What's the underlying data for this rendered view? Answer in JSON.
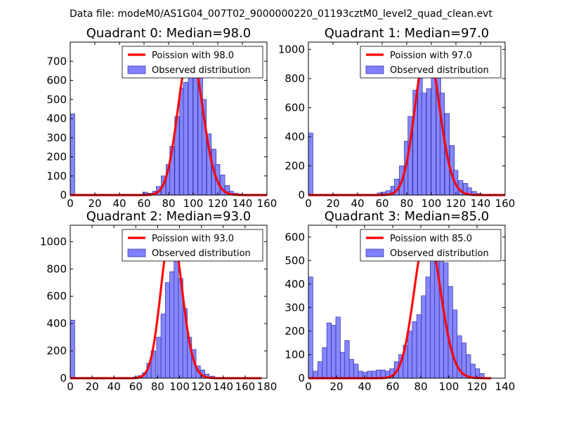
{
  "suptitle": "Data file: modeM0/AS1G04_007T02_9000000220_01193cztM0_level2_quad_clean.evt",
  "colors": {
    "bar_fill": "#8080ff",
    "bar_edge": "#2e2e9e",
    "model_line": "#ff0000"
  },
  "chart_data": [
    {
      "type": "bar",
      "title": "Quadrant 0: Median=98.0",
      "xlim": [
        0,
        160
      ],
      "ylim": [
        0,
        800
      ],
      "xticks": [
        0,
        20,
        40,
        60,
        80,
        100,
        120,
        140,
        160
      ],
      "yticks": [
        0,
        100,
        200,
        300,
        400,
        500,
        600,
        700
      ],
      "legend": [
        "Poission with 98.0",
        "Observed distribution"
      ],
      "legend_loc": "upper right",
      "bin_width": 3.7,
      "bins": [
        [
          0,
          425
        ],
        [
          59,
          15
        ],
        [
          63,
          10
        ],
        [
          67,
          20
        ],
        [
          70,
          45
        ],
        [
          74,
          100
        ],
        [
          78,
          160
        ],
        [
          81,
          255
        ],
        [
          85,
          410
        ],
        [
          89,
          560
        ],
        [
          92,
          590
        ],
        [
          96,
          670
        ],
        [
          100,
          700
        ],
        [
          104,
          620
        ],
        [
          107,
          500
        ],
        [
          111,
          320
        ],
        [
          115,
          240
        ],
        [
          118,
          160
        ],
        [
          122,
          105
        ],
        [
          126,
          50
        ],
        [
          129,
          20
        ],
        [
          133,
          10
        ],
        [
          137,
          5
        ]
      ],
      "model_mean": 98.0,
      "model_peak": 760,
      "model_x": [
        0,
        160
      ]
    },
    {
      "type": "bar",
      "title": "Quadrant 1: Median=97.0",
      "xlim": [
        0,
        160
      ],
      "ylim": [
        0,
        1050
      ],
      "xticks": [
        0,
        20,
        40,
        60,
        80,
        100,
        120,
        140,
        160
      ],
      "yticks": [
        0,
        200,
        400,
        600,
        800,
        1000
      ],
      "legend": [
        "Poission with 97.0",
        "Observed distribution"
      ],
      "legend_loc": "upper right",
      "bin_width": 3.7,
      "bins": [
        [
          0,
          425
        ],
        [
          56,
          15
        ],
        [
          59,
          20
        ],
        [
          63,
          30
        ],
        [
          67,
          60
        ],
        [
          70,
          110
        ],
        [
          74,
          200
        ],
        [
          78,
          370
        ],
        [
          81,
          540
        ],
        [
          85,
          720
        ],
        [
          89,
          900
        ],
        [
          92,
          700
        ],
        [
          96,
          730
        ],
        [
          100,
          870
        ],
        [
          104,
          1000
        ],
        [
          107,
          700
        ],
        [
          111,
          560
        ],
        [
          115,
          340
        ],
        [
          118,
          170
        ],
        [
          122,
          100
        ],
        [
          126,
          80
        ],
        [
          129,
          50
        ],
        [
          133,
          25
        ],
        [
          137,
          10
        ]
      ],
      "model_mean": 97.0,
      "model_peak": 1010,
      "model_x": [
        0,
        160
      ]
    },
    {
      "type": "bar",
      "title": "Quadrant 2: Median=93.0",
      "xlim": [
        0,
        180
      ],
      "ylim": [
        0,
        1120
      ],
      "xticks": [
        0,
        20,
        40,
        60,
        80,
        100,
        120,
        140,
        160,
        180
      ],
      "yticks": [
        0,
        200,
        400,
        600,
        800,
        1000
      ],
      "legend": [
        "Poission with 93.0",
        "Observed distribution"
      ],
      "legend_loc": "upper right",
      "bin_width": 4.1,
      "bins": [
        [
          0,
          425
        ],
        [
          58,
          10
        ],
        [
          62,
          20
        ],
        [
          66,
          40
        ],
        [
          70,
          110
        ],
        [
          74,
          200
        ],
        [
          79,
          300
        ],
        [
          83,
          470
        ],
        [
          87,
          700
        ],
        [
          91,
          780
        ],
        [
          95,
          1000
        ],
        [
          99,
          730
        ],
        [
          103,
          510
        ],
        [
          107,
          300
        ],
        [
          111,
          210
        ],
        [
          115,
          90
        ],
        [
          119,
          60
        ],
        [
          123,
          30
        ],
        [
          128,
          15
        ],
        [
          132,
          5
        ]
      ],
      "model_mean": 93.0,
      "model_peak": 1080,
      "model_x": [
        0,
        175
      ]
    },
    {
      "type": "bar",
      "title": "Quadrant 3: Median=85.0",
      "xlim": [
        0,
        140
      ],
      "ylim": [
        0,
        650
      ],
      "xticks": [
        0,
        20,
        40,
        60,
        80,
        100,
        120,
        140
      ],
      "yticks": [
        0,
        100,
        200,
        300,
        400,
        500,
        600
      ],
      "legend": [
        "Poission with 85.0",
        "Observed distribution"
      ],
      "legend_loc": "upper right",
      "bin_width": 3.2,
      "bins": [
        [
          0,
          430
        ],
        [
          3.5,
          30
        ],
        [
          6.7,
          70
        ],
        [
          9.9,
          130
        ],
        [
          13.1,
          235
        ],
        [
          16.3,
          225
        ],
        [
          19.5,
          260
        ],
        [
          22.7,
          110
        ],
        [
          25.9,
          160
        ],
        [
          29.1,
          80
        ],
        [
          32.3,
          60
        ],
        [
          35.5,
          30
        ],
        [
          38.7,
          25
        ],
        [
          41.9,
          30
        ],
        [
          45.1,
          30
        ],
        [
          48.3,
          35
        ],
        [
          51.5,
          35
        ],
        [
          54.7,
          30
        ],
        [
          57.9,
          40
        ],
        [
          61.1,
          70
        ],
        [
          64.3,
          100
        ],
        [
          67.5,
          140
        ],
        [
          70.7,
          200
        ],
        [
          73.9,
          240
        ],
        [
          77.1,
          270
        ],
        [
          80.3,
          350
        ],
        [
          83.5,
          430
        ],
        [
          86.7,
          530
        ],
        [
          89.9,
          600
        ],
        [
          93.1,
          620
        ],
        [
          96.3,
          490
        ],
        [
          99.5,
          390
        ],
        [
          102.7,
          290
        ],
        [
          105.9,
          180
        ],
        [
          109.1,
          150
        ],
        [
          112.3,
          100
        ],
        [
          115.5,
          60
        ],
        [
          118.7,
          40
        ],
        [
          121.9,
          20
        ]
      ],
      "model_mean": 85.0,
      "model_peak": 625,
      "model_x": [
        0,
        130
      ]
    }
  ]
}
